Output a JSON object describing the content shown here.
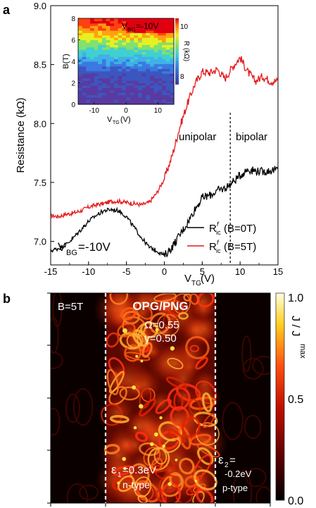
{
  "panel_a": {
    "label": "a",
    "annotations": {
      "unipolar": "unipolar",
      "bipolar": "bipolar",
      "vbg_main": "=-10V",
      "vbg_inset": "=-10V"
    },
    "inset": {
      "xlabel": "(V)",
      "ylabel": "B(T)",
      "cbar_label": "(kΩ)",
      "xticks": [
        "-10",
        "0",
        "10"
      ],
      "yticks": [
        "0",
        "2",
        "4",
        "6",
        "8"
      ],
      "cbar_ticks": [
        "8",
        "10"
      ]
    }
  },
  "panel_b": {
    "label": "b",
    "field": "B=5T",
    "title": "OPG/PNG",
    "omega": "Ω=0.55",
    "gamma": "γ=0.50",
    "eps1": "=0.3eV",
    "eps1_type": "n-type",
    "eps2": "=",
    "eps2_value": "-0.2eV",
    "eps2_type": "p-type",
    "colorbar": {
      "label": "J / J",
      "ticks": [
        "1.0",
        "0.5",
        "0.0"
      ],
      "colors": [
        "#000000",
        "#5a0000",
        "#c01000",
        "#ff5010",
        "#ffd020",
        "#ffffe0"
      ]
    }
  },
  "chart_data": [
    {
      "type": "line",
      "xlabel": "V",
      "ylabel": "Resistance (kΩ)",
      "xlim": [
        -15,
        15
      ],
      "ylim": [
        6.8,
        9.0
      ],
      "xticks": [
        "-15",
        "-10",
        "-5",
        "0",
        "5",
        "10",
        "15"
      ],
      "yticks": [
        "7.0",
        "7.5",
        "8.0",
        "8.5",
        "9.0"
      ],
      "vline_x": 8.7,
      "series": [
        {
          "name": "(B=5T)",
          "color": "#e41a1c",
          "x": [
            -15,
            -14,
            -13,
            -12,
            -11,
            -10,
            -9,
            -8,
            -7,
            -6,
            -5,
            -4,
            -3,
            -2,
            -1,
            0,
            1,
            2,
            3,
            4,
            5,
            6,
            7,
            8,
            9,
            10,
            11,
            12,
            13,
            14,
            15
          ],
          "y": [
            7.22,
            7.21,
            7.23,
            7.24,
            7.26,
            7.29,
            7.31,
            7.32,
            7.34,
            7.34,
            7.33,
            7.32,
            7.31,
            7.33,
            7.41,
            7.53,
            7.72,
            7.96,
            8.16,
            8.33,
            8.44,
            8.43,
            8.46,
            8.38,
            8.48,
            8.56,
            8.44,
            8.36,
            8.4,
            8.36,
            8.36
          ]
        },
        {
          "name": "(B=0T)",
          "color": "#000000",
          "x": [
            -15,
            -14,
            -13,
            -12,
            -11,
            -10,
            -9,
            -8,
            -7,
            -6,
            -5,
            -4,
            -3,
            -2,
            -1,
            0,
            1,
            2,
            3,
            4,
            5,
            6,
            7,
            8,
            9,
            10,
            11,
            12,
            13,
            14,
            15
          ],
          "y": [
            6.92,
            6.94,
            6.97,
            7.03,
            7.1,
            7.17,
            7.22,
            7.26,
            7.27,
            7.26,
            7.21,
            7.12,
            7.03,
            6.95,
            6.92,
            6.88,
            6.95,
            7.05,
            7.15,
            7.27,
            7.37,
            7.39,
            7.43,
            7.45,
            7.5,
            7.56,
            7.61,
            7.6,
            7.59,
            7.6,
            7.61
          ]
        }
      ],
      "legend": [
        {
          "sym": "R",
          "sup": "f",
          "sub": "ic",
          "label": "(B=0T)",
          "color": "#000000"
        },
        {
          "sym": "R",
          "sup": "f",
          "sub": "ic",
          "label": "(B=5T)",
          "color": "#e41a1c"
        }
      ],
      "legend_position": "bottom-right"
    },
    {
      "type": "heatmap",
      "xlabel": "V",
      "ylabel": "B(T)",
      "xlim": [
        -15,
        15
      ],
      "ylim": [
        0,
        8
      ],
      "zlabel": "R (kΩ)",
      "zlim": [
        8,
        10.5
      ]
    }
  ]
}
